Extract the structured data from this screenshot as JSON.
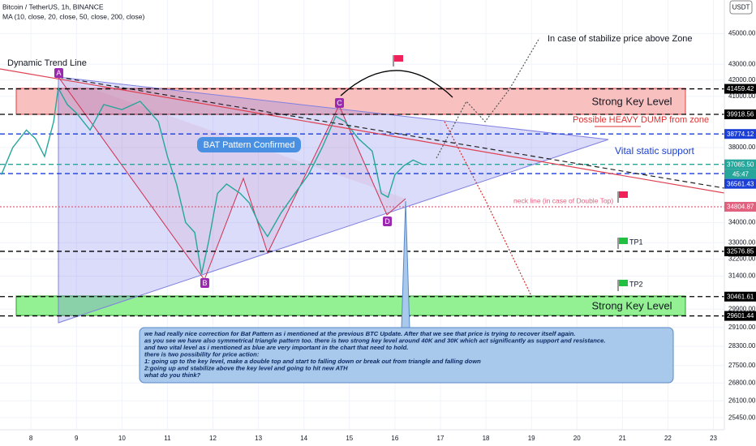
{
  "chart_data": {
    "type": "line",
    "title": "Bitcoin / TetherUS, 1h, BINANCE",
    "subtitle": "MA (10, close, 20, close, 50, close, 200, close)",
    "currency": "USDT",
    "log_scale": true,
    "grid": true,
    "color": "#26a69a",
    "x": [
      7.35,
      7.6,
      7.9,
      8.1,
      8.3,
      8.5,
      8.6,
      8.8,
      9.0,
      9.3,
      9.6,
      10.0,
      10.4,
      10.8,
      11.0,
      11.2,
      11.4,
      11.6,
      11.75,
      11.9,
      12.1,
      12.3,
      12.6,
      12.8,
      13.0,
      13.2,
      13.5,
      13.8,
      14.1,
      14.4,
      14.7,
      14.9,
      15.2,
      15.5,
      15.7,
      15.85,
      16.0,
      16.2,
      16.4,
      16.6
    ],
    "values": [
      36500,
      38000,
      39000,
      38500,
      37500,
      39500,
      41500,
      40500,
      40000,
      39000,
      40500,
      40200,
      40700,
      39500,
      37500,
      36000,
      34000,
      33500,
      31500,
      33000,
      35500,
      36000,
      35500,
      35000,
      34000,
      33300,
      34500,
      35500,
      36500,
      38000,
      39800,
      39500,
      38500,
      37800,
      35500,
      35300,
      36500,
      37000,
      37300,
      37065.5
    ],
    "xlim": [
      7.32,
      23.24
    ],
    "xticks": [
      8,
      9,
      10,
      11,
      12,
      13,
      14,
      15,
      16,
      17,
      18,
      19,
      20,
      21,
      22,
      23
    ],
    "ylim": [
      25000,
      47300
    ],
    "yticks": [
      {
        "value": 45000,
        "label": "45000.00"
      },
      {
        "value": 43000,
        "label": "43000.00"
      },
      {
        "value": 42000,
        "label": "42000.00"
      },
      {
        "value": 41000,
        "label": "41000.00"
      },
      {
        "value": 38000,
        "label": "38000.00"
      },
      {
        "value": 34000,
        "label": "34000.00"
      },
      {
        "value": 33000,
        "label": "33000.00"
      },
      {
        "value": 32200,
        "label": "32200.00"
      },
      {
        "value": 31400,
        "label": "31400.00"
      },
      {
        "value": 29900,
        "label": "29900.00"
      },
      {
        "value": 29100,
        "label": "29100.00"
      },
      {
        "value": 28300,
        "label": "28300.00"
      },
      {
        "value": 27500,
        "label": "27500.00"
      },
      {
        "value": 26800,
        "label": "26800.00"
      },
      {
        "value": 26100,
        "label": "26100.00"
      },
      {
        "value": 25450,
        "label": "25450.00"
      }
    ],
    "price_tags": [
      {
        "value": 41459.42,
        "color": "#000000"
      },
      {
        "value": 39918.56,
        "color": "#000000"
      },
      {
        "value": 38774.12,
        "color": "#1a3fd6"
      },
      {
        "value": 37065.5,
        "label": "37065.50",
        "color": "#26a69a"
      },
      {
        "value": 36561.43,
        "color": "#1a3fd6"
      },
      {
        "value": 34804.87,
        "color": "#e0607e"
      },
      {
        "value": 32576.85,
        "color": "#000000"
      },
      {
        "value": 30461.61,
        "color": "#000000"
      },
      {
        "value": 29601.44,
        "color": "#000000"
      }
    ],
    "countdown": "45:47",
    "annotations": {
      "trend": "Dynamic Trend Line",
      "a": "A",
      "b": "B",
      "c": "C",
      "d": "D",
      "bat": "BAT Pattern Confirmed",
      "upper_zone": "Strong Key Level",
      "lower_zone": "Strong Key Level",
      "stabilize": "In case of stabilize price above Zone",
      "dump": "Possible HEAVY DUMP from zone",
      "vital": "Vital static support",
      "neck": "neck line (in case of Double Top)",
      "tp1": "TP1",
      "tp2": "TP2"
    },
    "note": [
      "we had really nice correction for Bat Pattern as i mentioned at the previous BTC Update. After that we see that price is trying to recover itself again.",
      "as you see we have also symmetrical triangle pattern too. there is two strong key level around 40K and 30K which act significantly as support and resistance.",
      "and two vital level as i mentioned as blue are very important in the chart that need to hold.",
      "there is two possibility for price action:",
      "1: going up to the key level, make a double top and start to falling down or break out from triangle and falling down",
      "2:going up and stabilize above the key level and going to hit new ATH",
      "what do you think?"
    ]
  }
}
